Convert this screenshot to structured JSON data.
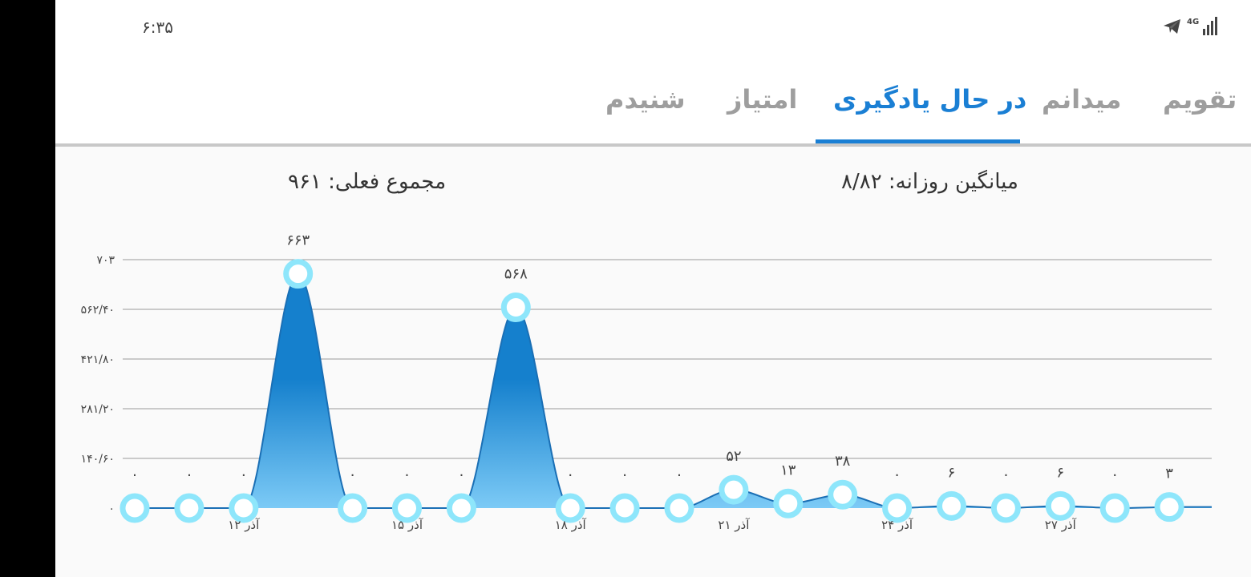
{
  "status_bar": {
    "time": "۶:۳۵",
    "network_label": "4G",
    "icons": [
      "telegram-icon",
      "signal-icon"
    ]
  },
  "tabs": [
    {
      "label": "تقویم",
      "active": false
    },
    {
      "label": "میدانم",
      "active": false
    },
    {
      "label": "در حال یادگیری",
      "active": true
    },
    {
      "label": "امتیاز",
      "active": false
    },
    {
      "label": "شنیدم",
      "active": false
    }
  ],
  "stats": {
    "daily_average": "میانگین روزانه: ۸/۸۲",
    "current_total": "مجموع فعلی: ۹۶۱"
  },
  "colors": {
    "accent": "#1a7fd4",
    "area_top": "#1580cd",
    "area_bottom": "#7ccaf6",
    "marker": "#8ee6fb"
  },
  "chart_data": {
    "type": "area",
    "x": [
      "10",
      "11",
      "12",
      "13",
      "14",
      "15",
      "16",
      "17",
      "18",
      "19",
      "20",
      "21",
      "22",
      "23",
      "24",
      "25",
      "26",
      "27",
      "28",
      "29"
    ],
    "values": [
      0,
      0,
      0,
      663,
      0,
      0,
      0,
      568,
      0,
      0,
      0,
      52,
      13,
      38,
      0,
      6,
      0,
      6,
      0,
      3
    ],
    "point_labels": [
      "۰",
      "۰",
      "۰",
      "۶۶۳",
      "۰",
      "۰",
      "۰",
      "۵۶۸",
      "۰",
      "۰",
      "۰",
      "۵۲",
      "۱۳",
      "۳۸",
      "۰",
      "۶",
      "۰",
      "۶",
      "۰",
      "۳"
    ],
    "x_tick_labels": [
      {
        "index": 2,
        "label": "۱۲ آذر"
      },
      {
        "index": 5,
        "label": "۱۵ آذر"
      },
      {
        "index": 8,
        "label": "۱۸ آذر"
      },
      {
        "index": 11,
        "label": "۲۱ آذر"
      },
      {
        "index": 14,
        "label": "۲۴ آذر"
      },
      {
        "index": 17,
        "label": "۲۷ آذر"
      }
    ],
    "y_ticks": [
      0,
      140.6,
      281.2,
      421.8,
      562.4,
      703
    ],
    "y_tick_labels": [
      "۰",
      "۱۴۰/۶۰",
      "۲۸۱/۲۰",
      "۴۲۱/۸۰",
      "۵۶۲/۴۰",
      "۷۰۳"
    ],
    "ylim": [
      0,
      703
    ],
    "grid": true
  }
}
